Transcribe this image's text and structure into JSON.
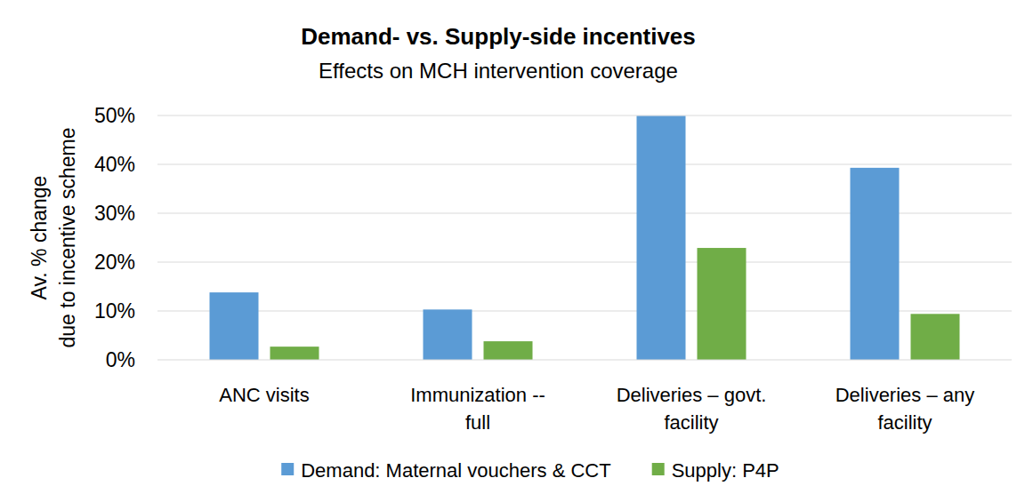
{
  "chart_data": {
    "type": "bar",
    "title": "Demand- vs.  Supply-side incentives",
    "subtitle": "Effects on MCH intervention coverage",
    "y_label": [
      "Av. % change",
      "due to incentive scheme"
    ],
    "categories": [
      "ANC visits",
      "Immunization -- full",
      "Deliveries – govt. facility",
      "Deliveries – any facility"
    ],
    "series": [
      {
        "name": "Demand: Maternal vouchers & CCT",
        "color": "#5b9bd5",
        "values": [
          13.8,
          10.3,
          49.9,
          39.3
        ]
      },
      {
        "name": "Supply: P4P",
        "color": "#70ad47",
        "values": [
          2.7,
          3.8,
          22.9,
          9.4
        ]
      }
    ],
    "ylim": [
      0,
      50
    ],
    "yticks": [
      {
        "value": 0,
        "label": "0%"
      },
      {
        "value": 10,
        "label": "10%"
      },
      {
        "value": 20,
        "label": "20%"
      },
      {
        "value": 30,
        "label": "30%"
      },
      {
        "value": 40,
        "label": "40%"
      },
      {
        "value": 50,
        "label": "50%"
      }
    ],
    "grid": true,
    "legend": "bottom"
  }
}
